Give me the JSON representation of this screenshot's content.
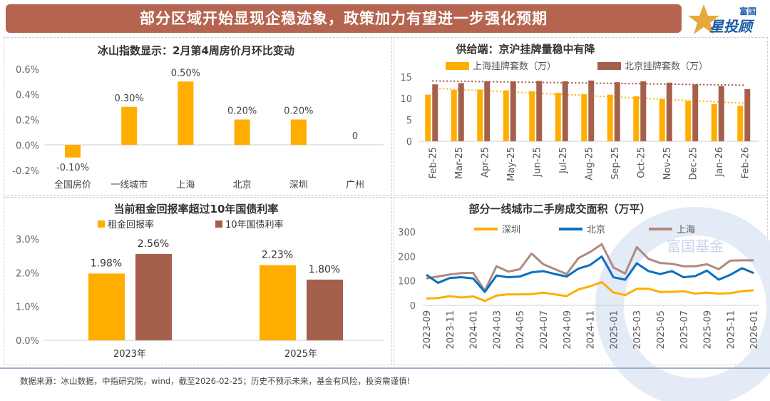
{
  "header": {
    "title": "部分区域开始显现企稳迹象，政策加力有望进一步强化预期",
    "logo_top": "富国",
    "logo_main": "星投顾"
  },
  "footer": {
    "source": "数据来源：冰山数据，中指研究院，wind，截至2026-02-25；历史不预示未来，基金有风险，投资需谨慎!"
  },
  "watermark": "富国基金",
  "colors": {
    "orange": "#ffae00",
    "brown": "#a5604c",
    "blue": "#0b6fbf",
    "mauve": "#b08a80"
  },
  "chart_data": [
    {
      "type": "bar",
      "title": "冰山指数显示：2月第4周房价月环比变动",
      "categories": [
        "全国房价",
        "一线城市",
        "上海",
        "北京",
        "深圳",
        "广州"
      ],
      "values": [
        -0.1,
        0.3,
        0.5,
        0.2,
        0.2,
        0
      ],
      "value_labels": [
        "-0.10%",
        "0.30%",
        "0.50%",
        "0.20%",
        "0.20%",
        "0"
      ],
      "yticks": [
        "0.6%",
        "0.4%",
        "0.2%",
        "0.0%",
        "-0.2%"
      ],
      "ylim": [
        -0.2,
        0.6
      ]
    },
    {
      "type": "bar",
      "title": "供给端：京沪挂牌量稳中有降",
      "categories": [
        "Feb-25",
        "Mar-25",
        "Apr-25",
        "May-25",
        "Jun-25",
        "Jul-25",
        "Aug-25",
        "Sep-25",
        "Oct-25",
        "Nov-25",
        "Dec-25",
        "Jan-26",
        "Feb-26"
      ],
      "series": [
        {
          "name": "上海挂牌套数（万）",
          "values": [
            10.9,
            12.0,
            12.1,
            11.9,
            11.7,
            11.3,
            11.0,
            10.9,
            10.5,
            9.9,
            9.4,
            8.7,
            8.3
          ],
          "trend": [
            12.4,
            8.9
          ]
        },
        {
          "name": "北京挂牌套数（万）",
          "values": [
            13.3,
            13.6,
            14.0,
            14.0,
            14.1,
            14.0,
            14.2,
            13.8,
            14.0,
            13.7,
            13.3,
            12.9,
            12.2
          ],
          "trend": [
            14.1,
            13.1
          ]
        }
      ],
      "yticks": [
        "15",
        "10",
        "5",
        "0"
      ],
      "ylim": [
        0,
        15
      ]
    },
    {
      "type": "bar",
      "title": "当前租金回报率超过10年国债利率",
      "categories": [
        "2023年",
        "2025年"
      ],
      "series": [
        {
          "name": "租金回报率",
          "values": [
            1.98,
            2.23
          ],
          "labels": [
            "1.98%",
            "2.23%"
          ]
        },
        {
          "name": "10年国债利率",
          "values": [
            2.56,
            1.8
          ],
          "labels": [
            "2.56%",
            "1.80%"
          ]
        }
      ],
      "yticks": [
        "3.0%",
        "2.0%",
        "1.0%",
        "0.0%"
      ],
      "ylim": [
        0,
        3
      ]
    },
    {
      "type": "line",
      "title": "部分一线城市二手房成交面积（万平）",
      "xticks": [
        "2023-09",
        "2023-11",
        "2024-01",
        "2024-03",
        "2024-05",
        "2024-07",
        "2024-09",
        "2024-11",
        "2025-01",
        "2025-03",
        "2025-05",
        "2025-07",
        "2025-09",
        "2025-11",
        "2026-01"
      ],
      "yticks": [
        "300",
        "200",
        "100",
        "0"
      ],
      "ylim": [
        0,
        300
      ],
      "series": [
        {
          "name": "深圳",
          "values": [
            28,
            30,
            38,
            32,
            37,
            18,
            40,
            45,
            45,
            46,
            52,
            45,
            38,
            65,
            78,
            95,
            53,
            42,
            68,
            68,
            55,
            55,
            58,
            48,
            52,
            48,
            50,
            58,
            62
          ]
        },
        {
          "name": "北京",
          "values": [
            125,
            92,
            112,
            115,
            110,
            55,
            122,
            115,
            118,
            135,
            140,
            128,
            118,
            150,
            165,
            200,
            115,
            105,
            172,
            140,
            128,
            140,
            115,
            120,
            142,
            105,
            125,
            152,
            132
          ]
        },
        {
          "name": "上海",
          "values": [
            110,
            118,
            126,
            132,
            133,
            60,
            160,
            138,
            148,
            212,
            168,
            148,
            128,
            193,
            218,
            250,
            155,
            130,
            238,
            190,
            173,
            170,
            160,
            160,
            168,
            148,
            183,
            184,
            184
          ]
        }
      ]
    }
  ]
}
